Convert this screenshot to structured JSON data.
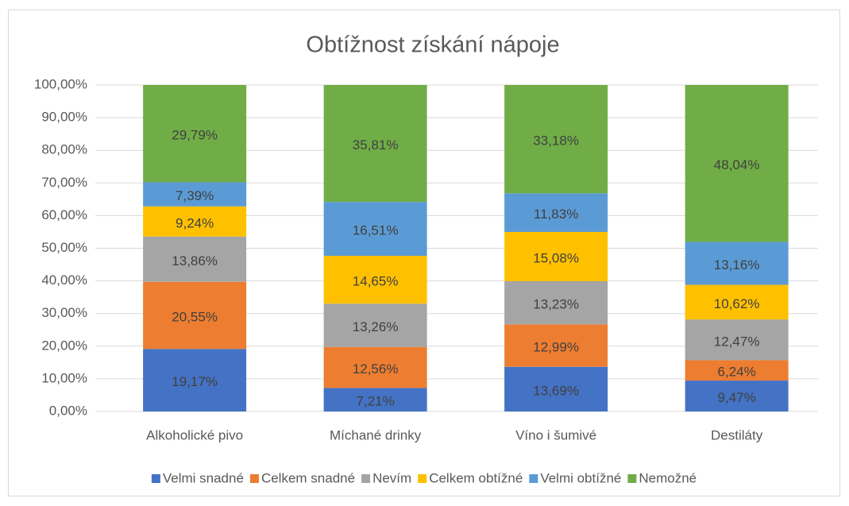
{
  "chart_data": {
    "type": "stacked_bar",
    "title": "Obtížnost získání nápoje",
    "categories": [
      "Alkoholické pivo",
      "Míchané drinky",
      "Víno i šumivé",
      "Destiláty"
    ],
    "series": [
      {
        "name": "Velmi snadné",
        "color": "#4472c4",
        "values": [
          19.17,
          7.21,
          13.69,
          9.47
        ],
        "value_labels": [
          "19,17%",
          "7,21%",
          "13,69%",
          "9,47%"
        ]
      },
      {
        "name": "Celkem snadné",
        "color": "#ed7d31",
        "values": [
          20.55,
          12.56,
          12.99,
          6.24
        ],
        "value_labels": [
          "20,55%",
          "12,56%",
          "12,99%",
          "6,24%"
        ]
      },
      {
        "name": "Nevím",
        "color": "#a5a5a5",
        "values": [
          13.86,
          13.26,
          13.23,
          12.47
        ],
        "value_labels": [
          "13,86%",
          "13,26%",
          "13,23%",
          "12,47%"
        ]
      },
      {
        "name": "Celkem obtížné",
        "color": "#ffc000",
        "values": [
          9.24,
          14.65,
          15.08,
          10.62
        ],
        "value_labels": [
          "9,24%",
          "14,65%",
          "15,08%",
          "10,62%"
        ]
      },
      {
        "name": "Velmi obtížné",
        "color": "#5b9bd5",
        "values": [
          7.39,
          16.51,
          11.83,
          13.16
        ],
        "value_labels": [
          "7,39%",
          "16,51%",
          "11,83%",
          "13,16%"
        ]
      },
      {
        "name": "Nemožné",
        "color": "#70ad47",
        "values": [
          29.79,
          35.81,
          33.18,
          48.04
        ],
        "value_labels": [
          "29,79%",
          "35,81%",
          "33,18%",
          "48,04%"
        ]
      }
    ],
    "ylim": [
      0,
      100
    ],
    "yticks": [
      {
        "value": 0,
        "label": "0,00%"
      },
      {
        "value": 10,
        "label": "10,00%"
      },
      {
        "value": 20,
        "label": "20,00%"
      },
      {
        "value": 30,
        "label": "30,00%"
      },
      {
        "value": 40,
        "label": "40,00%"
      },
      {
        "value": 50,
        "label": "50,00%"
      },
      {
        "value": 60,
        "label": "60,00%"
      },
      {
        "value": 70,
        "label": "70,00%"
      },
      {
        "value": 80,
        "label": "80,00%"
      },
      {
        "value": 90,
        "label": "90,00%"
      },
      {
        "value": 100,
        "label": "100,00%"
      }
    ],
    "grid": true,
    "legend": "bottom"
  }
}
